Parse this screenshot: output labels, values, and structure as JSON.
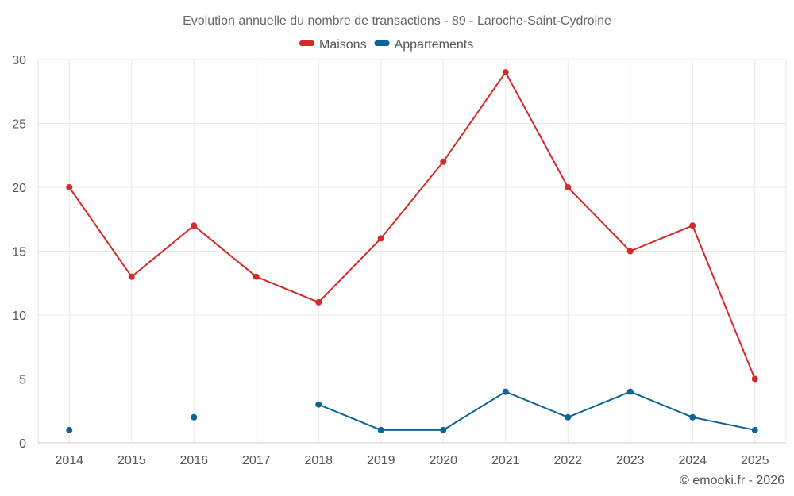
{
  "chart_data": {
    "type": "line",
    "title": "Evolution annuelle du nombre de transactions - 89 - Laroche-Saint-Cydroine",
    "xlabel": "",
    "ylabel": "",
    "categories": [
      "2014",
      "2015",
      "2016",
      "2017",
      "2018",
      "2019",
      "2020",
      "2021",
      "2022",
      "2023",
      "2024",
      "2025"
    ],
    "ylim": [
      0,
      30
    ],
    "yticks": [
      0,
      5,
      10,
      15,
      20,
      25,
      30
    ],
    "grid": true,
    "legend_position": "top-center",
    "series": [
      {
        "name": "Maisons",
        "color": "#d42a2a",
        "values": [
          20,
          13,
          17,
          13,
          11,
          16,
          22,
          29,
          20,
          15,
          17,
          5
        ]
      },
      {
        "name": "Appartements",
        "color": "#0f6496",
        "values": [
          1,
          null,
          2,
          null,
          3,
          1,
          1,
          4,
          2,
          4,
          2,
          1
        ]
      }
    ]
  },
  "credit": "© emooki.fr - 2026"
}
